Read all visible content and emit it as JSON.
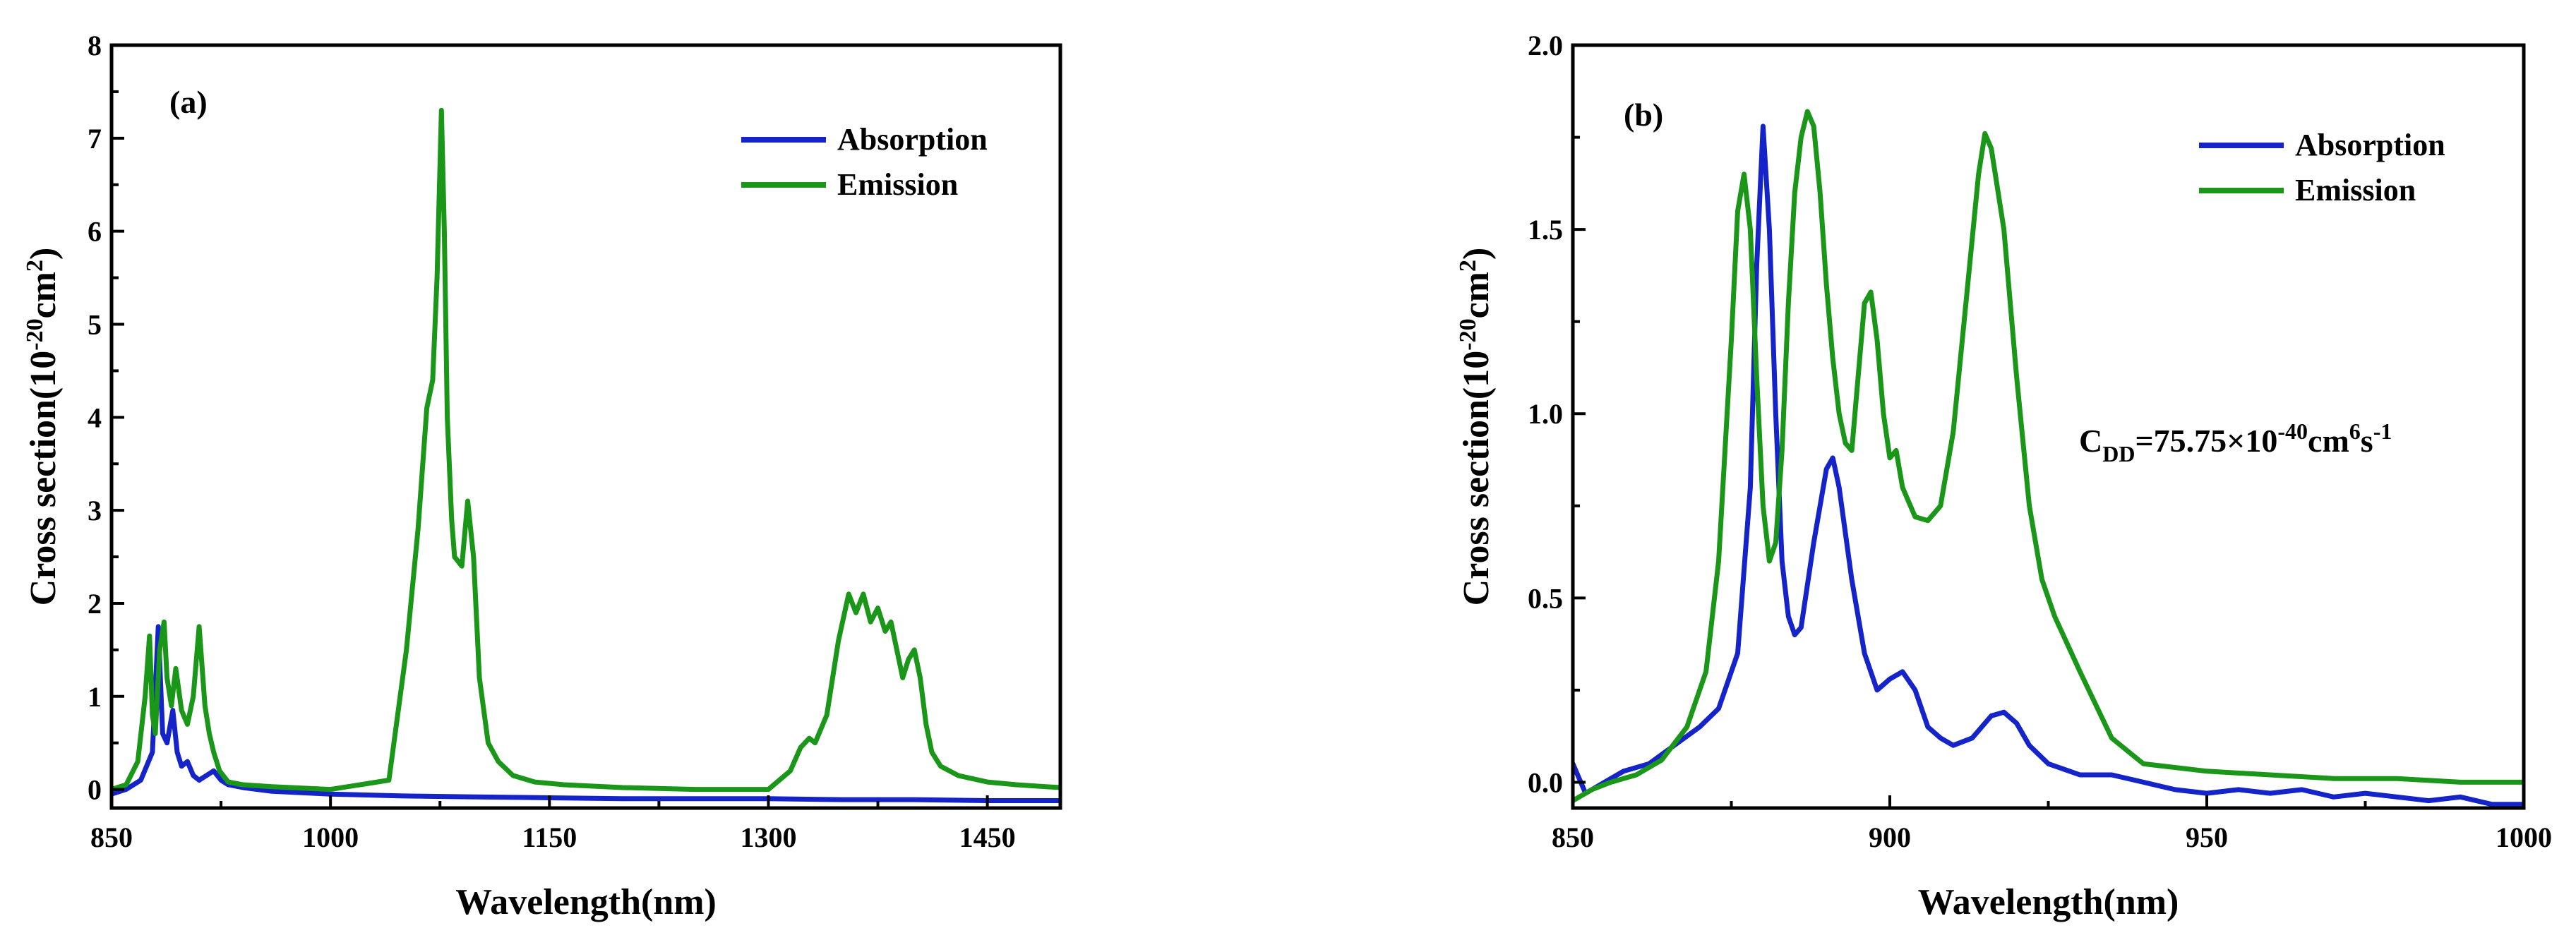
{
  "chart_data": [
    {
      "type": "line",
      "panel_label": "(a)",
      "xlabel": "Wavelength(nm)",
      "ylabel_prefix": "Cross section(10",
      "ylabel_exp": "-20",
      "ylabel_mid": "cm",
      "ylabel_exp2": "2",
      "ylabel_suffix": ")",
      "xlim": [
        850,
        1500
      ],
      "ylim": [
        -0.2,
        8
      ],
      "xticks": [
        850,
        1000,
        1150,
        1300,
        1450
      ],
      "yticks": [
        0,
        1,
        2,
        3,
        4,
        5,
        6,
        7,
        8
      ],
      "legend_position": "top-right",
      "series": [
        {
          "name": "Absorption",
          "color": "#1424c8",
          "x": [
            850,
            860,
            870,
            878,
            882,
            885,
            888,
            892,
            895,
            898,
            902,
            906,
            910,
            915,
            920,
            925,
            930,
            940,
            960,
            1000,
            1050,
            1100,
            1150,
            1200,
            1250,
            1300,
            1350,
            1400,
            1450,
            1500
          ],
          "y": [
            -0.05,
            0.0,
            0.1,
            0.4,
            1.75,
            0.6,
            0.5,
            0.85,
            0.4,
            0.25,
            0.3,
            0.15,
            0.1,
            0.15,
            0.2,
            0.1,
            0.05,
            0.02,
            -0.02,
            -0.05,
            -0.07,
            -0.08,
            -0.09,
            -0.1,
            -0.1,
            -0.1,
            -0.11,
            -0.11,
            -0.12,
            -0.12
          ]
        },
        {
          "name": "Emission",
          "color": "#1a9618",
          "x": [
            850,
            860,
            868,
            873,
            876,
            878,
            880,
            883,
            886,
            888,
            891,
            894,
            898,
            902,
            906,
            910,
            914,
            917,
            920,
            924,
            930,
            940,
            960,
            1000,
            1040,
            1052,
            1060,
            1066,
            1070,
            1073,
            1076,
            1078,
            1080,
            1083,
            1085,
            1090,
            1094,
            1098,
            1102,
            1108,
            1115,
            1125,
            1140,
            1160,
            1200,
            1250,
            1300,
            1315,
            1322,
            1328,
            1332,
            1340,
            1348,
            1355,
            1360,
            1365,
            1370,
            1375,
            1380,
            1384,
            1388,
            1392,
            1396,
            1400,
            1404,
            1408,
            1412,
            1418,
            1430,
            1450,
            1470,
            1490,
            1500
          ],
          "y": [
            0.0,
            0.05,
            0.3,
            1.0,
            1.65,
            0.8,
            0.6,
            1.5,
            1.8,
            1.2,
            0.9,
            1.3,
            0.85,
            0.7,
            1.0,
            1.75,
            0.9,
            0.6,
            0.4,
            0.2,
            0.08,
            0.05,
            0.03,
            0.0,
            0.1,
            1.5,
            2.8,
            4.1,
            4.4,
            5.5,
            7.3,
            6.0,
            4.0,
            2.9,
            2.5,
            2.4,
            3.1,
            2.5,
            1.2,
            0.5,
            0.3,
            0.15,
            0.08,
            0.05,
            0.02,
            0.0,
            0.0,
            0.2,
            0.45,
            0.55,
            0.5,
            0.8,
            1.6,
            2.1,
            1.9,
            2.1,
            1.8,
            1.95,
            1.7,
            1.8,
            1.5,
            1.2,
            1.4,
            1.5,
            1.2,
            0.7,
            0.4,
            0.25,
            0.15,
            0.08,
            0.05,
            0.03,
            0.02
          ]
        }
      ]
    },
    {
      "type": "line",
      "panel_label": "(b)",
      "xlabel": "Wavelength(nm)",
      "ylabel_prefix": "Cross section(10",
      "ylabel_exp": "-20",
      "ylabel_mid": "cm",
      "ylabel_exp2": "2",
      "ylabel_suffix": ")",
      "xlim": [
        850,
        1000
      ],
      "ylim": [
        -0.07,
        2.0
      ],
      "xticks": [
        850,
        900,
        950,
        1000
      ],
      "yticks": [
        0.0,
        0.5,
        1.0,
        1.5,
        2.0
      ],
      "ytick_labels": [
        "0.0",
        "0.5",
        "1.0",
        "1.5",
        "2.0"
      ],
      "legend_position": "top-right",
      "annotation": {
        "base": "C",
        "sub": "DD",
        "text": "=75.75×10",
        "exp": "-40",
        "text2": "cm",
        "exp2": "6",
        "text3": "s",
        "exp3": "-1"
      },
      "series": [
        {
          "name": "Absorption",
          "color": "#1424c8",
          "x": [
            850,
            852,
            855,
            858,
            862,
            866,
            870,
            873,
            876,
            878,
            879,
            880,
            881,
            882,
            883,
            884,
            885,
            886,
            888,
            890,
            891,
            892,
            894,
            896,
            898,
            900,
            902,
            904,
            906,
            908,
            910,
            913,
            916,
            918,
            920,
            922,
            925,
            930,
            935,
            940,
            945,
            950,
            955,
            960,
            965,
            970,
            975,
            980,
            985,
            990,
            995,
            1000
          ],
          "y": [
            0.05,
            -0.03,
            0.0,
            0.03,
            0.05,
            0.1,
            0.15,
            0.2,
            0.35,
            0.8,
            1.4,
            1.78,
            1.5,
            1.0,
            0.6,
            0.45,
            0.4,
            0.42,
            0.65,
            0.85,
            0.88,
            0.8,
            0.55,
            0.35,
            0.25,
            0.28,
            0.3,
            0.25,
            0.15,
            0.12,
            0.1,
            0.12,
            0.18,
            0.19,
            0.16,
            0.1,
            0.05,
            0.02,
            0.02,
            0.0,
            -0.02,
            -0.03,
            -0.02,
            -0.03,
            -0.02,
            -0.04,
            -0.03,
            -0.04,
            -0.05,
            -0.04,
            -0.06,
            -0.06
          ]
        },
        {
          "name": "Emission",
          "color": "#1a9618",
          "x": [
            850,
            853,
            856,
            860,
            864,
            868,
            871,
            873,
            875,
            876,
            877,
            878,
            879,
            880,
            881,
            882,
            883,
            884,
            885,
            886,
            887,
            888,
            889,
            890,
            891,
            892,
            893,
            894,
            895,
            896,
            897,
            898,
            899,
            900,
            901,
            902,
            904,
            906,
            908,
            910,
            912,
            914,
            915,
            916,
            918,
            920,
            922,
            924,
            926,
            930,
            935,
            940,
            950,
            960,
            970,
            980,
            990,
            1000
          ],
          "y": [
            -0.05,
            -0.02,
            0.0,
            0.02,
            0.06,
            0.15,
            0.3,
            0.6,
            1.2,
            1.55,
            1.65,
            1.5,
            1.1,
            0.75,
            0.6,
            0.65,
            0.9,
            1.3,
            1.6,
            1.75,
            1.82,
            1.78,
            1.6,
            1.35,
            1.15,
            1.0,
            0.92,
            0.9,
            1.1,
            1.3,
            1.33,
            1.2,
            1.0,
            0.88,
            0.9,
            0.8,
            0.72,
            0.71,
            0.75,
            0.95,
            1.3,
            1.65,
            1.76,
            1.72,
            1.5,
            1.1,
            0.75,
            0.55,
            0.45,
            0.3,
            0.12,
            0.05,
            0.03,
            0.02,
            0.01,
            0.01,
            0.0,
            0.0
          ]
        }
      ]
    }
  ]
}
